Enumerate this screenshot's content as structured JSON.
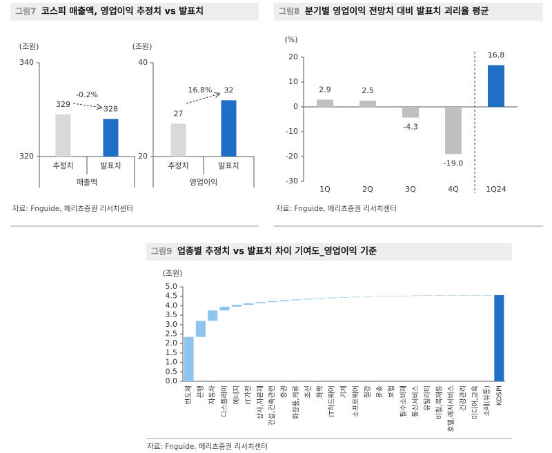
{
  "chart_data": [
    {
      "type": "bar",
      "figure_label": "그림7",
      "title": "코스피 매출액, 영업이익 추정치 vs 발표치",
      "y_unit": "(조원)",
      "group_label": "매출액",
      "categories": [
        "추정치",
        "발표치"
      ],
      "values": [
        329,
        328
      ],
      "colors": [
        "#d9d9d9",
        "#1f6fc5"
      ],
      "ylim": [
        320,
        340
      ],
      "yticks": [
        320,
        340
      ],
      "annotation": "-0.2%",
      "source": "자료: Fnguide, 메리츠증권 리서치센터"
    },
    {
      "type": "bar",
      "y_unit": "(조원)",
      "group_label": "영업이익",
      "categories": [
        "추정치",
        "발표치"
      ],
      "values": [
        27,
        32
      ],
      "colors": [
        "#d9d9d9",
        "#1f6fc5"
      ],
      "ylim": [
        20,
        40
      ],
      "yticks": [
        20,
        40
      ],
      "annotation": "16.8%"
    },
    {
      "type": "bar",
      "figure_label": "그림8",
      "title": "분기별 영업이익 전망치 대비 발표치 괴리율 평균",
      "y_unit": "(%)",
      "categories": [
        "1Q",
        "2Q",
        "3Q",
        "4Q",
        "1Q24"
      ],
      "values": [
        2.9,
        2.5,
        -4.3,
        -19.0,
        16.8
      ],
      "value_labels": [
        "2.9",
        "2.5",
        "-4.3",
        "-19.0",
        "16.8"
      ],
      "colors": [
        "#bfbfbf",
        "#bfbfbf",
        "#bfbfbf",
        "#bfbfbf",
        "#1f6fc5"
      ],
      "ylim": [
        -30,
        20
      ],
      "yticks": [
        -30,
        -20,
        -10,
        0,
        10,
        20
      ],
      "source": "자료: Fnguide, 메리츠증권 리서치센터"
    },
    {
      "type": "waterfall",
      "figure_label": "그림9",
      "title": "업종별 추정치 vs 발표치 차이 기여도_영업이익 기준",
      "y_unit": "(조원)",
      "categories": [
        "반도체",
        "은행",
        "자동차",
        "디스플레이",
        "에너지",
        "IT가전",
        "상사,자본재",
        "건설,건축관련",
        "증권",
        "화장품,의류",
        "조선",
        "화학",
        "IT하드웨어",
        "기계",
        "소프트웨어",
        "철강",
        "운송",
        "보험",
        "필수소비재",
        "통신서비스",
        "유틸리티",
        "비철,목재등",
        "호텔,레저서비스",
        "건강관리",
        "미디어,교육",
        "소매(유통)",
        "KOSPI"
      ],
      "values": [
        2.35,
        0.85,
        0.55,
        0.2,
        0.1,
        0.08,
        0.06,
        0.05,
        0.05,
        0.04,
        0.04,
        0.03,
        0.03,
        0.02,
        0.02,
        0.02,
        0.02,
        0.01,
        0.01,
        0.01,
        0.01,
        0.01,
        0.0,
        0.0,
        0.0,
        0.0,
        4.56
      ],
      "color": "#8ec5ee",
      "total_color": "#1f6fc5",
      "ylim": [
        0,
        5
      ],
      "yticks": [
        {
          "value": 0,
          "label": "0.0"
        },
        0.5,
        {
          "value": 1,
          "label": "1.0"
        },
        1.5,
        {
          "value": 2,
          "label": "2.0"
        },
        2.5,
        {
          "value": 3,
          "label": "3.0"
        },
        3.5,
        {
          "value": 4,
          "label": "4.0"
        },
        4.5,
        {
          "value": 5,
          "label": "5.0"
        }
      ],
      "source": "자료: Fnguide, 메리츠증권 리서치센터"
    }
  ]
}
